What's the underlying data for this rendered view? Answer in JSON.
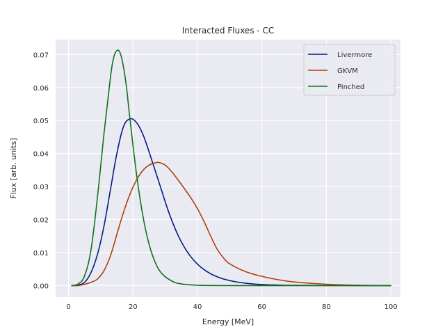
{
  "chart_data": {
    "type": "line",
    "title": "Interacted Fluxes - CC",
    "xlabel": "Energy [MeV]",
    "ylabel": "Flux [arb. units]",
    "xlim": [
      -4,
      103
    ],
    "ylim": [
      -0.0035,
      0.0745
    ],
    "xticks": [
      0,
      20,
      40,
      60,
      80,
      100
    ],
    "xtick_labels": [
      "0",
      "20",
      "40",
      "60",
      "80",
      "100"
    ],
    "yticks": [
      0.0,
      0.01,
      0.02,
      0.03,
      0.04,
      0.05,
      0.06,
      0.07
    ],
    "ytick_labels": [
      "0.00",
      "0.01",
      "0.02",
      "0.03",
      "0.04",
      "0.05",
      "0.06",
      "0.07"
    ],
    "grid": true,
    "legend_position": "top-right",
    "background_color": "#eaeaf2",
    "series": [
      {
        "name": "Livermore",
        "color": "#001c7f",
        "x": [
          1,
          3,
          5,
          7,
          9,
          11,
          13,
          15,
          17,
          19,
          21,
          23,
          25,
          28,
          31,
          34,
          37,
          40,
          43,
          46,
          50,
          55,
          60,
          65,
          70,
          80,
          90,
          100
        ],
        "y": [
          0.0,
          0.0002,
          0.001,
          0.004,
          0.0095,
          0.018,
          0.029,
          0.04,
          0.048,
          0.0505,
          0.0495,
          0.046,
          0.0405,
          0.0315,
          0.0225,
          0.0152,
          0.01,
          0.0065,
          0.0042,
          0.0027,
          0.0015,
          0.0007,
          0.0003,
          0.00015,
          7e-05,
          2e-05,
          0.0,
          0.0
        ]
      },
      {
        "name": "GKVM",
        "color": "#b1400d",
        "x": [
          1,
          3,
          5,
          7,
          9,
          11,
          13,
          15,
          17,
          19,
          21,
          23,
          25,
          27,
          28,
          30,
          32,
          34,
          36,
          38,
          40,
          42,
          44,
          46,
          48,
          50,
          55,
          60,
          65,
          70,
          80,
          90,
          100
        ],
        "y": [
          0.0,
          0.0,
          0.0004,
          0.001,
          0.002,
          0.0045,
          0.009,
          0.0155,
          0.022,
          0.0275,
          0.0318,
          0.0348,
          0.0365,
          0.0372,
          0.0373,
          0.0365,
          0.0345,
          0.032,
          0.0293,
          0.0265,
          0.0233,
          0.0195,
          0.0152,
          0.0112,
          0.0085,
          0.0066,
          0.0042,
          0.0028,
          0.0018,
          0.0011,
          0.0004,
          0.0001,
          0.0
        ]
      },
      {
        "name": "Pinched",
        "color": "#12711c",
        "x": [
          1,
          3,
          5,
          7,
          9,
          11,
          13,
          14,
          15,
          16,
          17,
          18,
          19,
          21,
          23,
          25,
          27,
          29,
          32,
          35,
          40,
          45,
          50,
          60,
          70,
          100
        ],
        "y": [
          0.0,
          0.0005,
          0.003,
          0.011,
          0.027,
          0.046,
          0.063,
          0.069,
          0.0712,
          0.0705,
          0.0665,
          0.06,
          0.051,
          0.0345,
          0.0215,
          0.0125,
          0.0068,
          0.0036,
          0.0014,
          0.0005,
          0.0001,
          2e-05,
          0.0,
          0.0,
          0.0,
          0.0
        ]
      }
    ]
  }
}
